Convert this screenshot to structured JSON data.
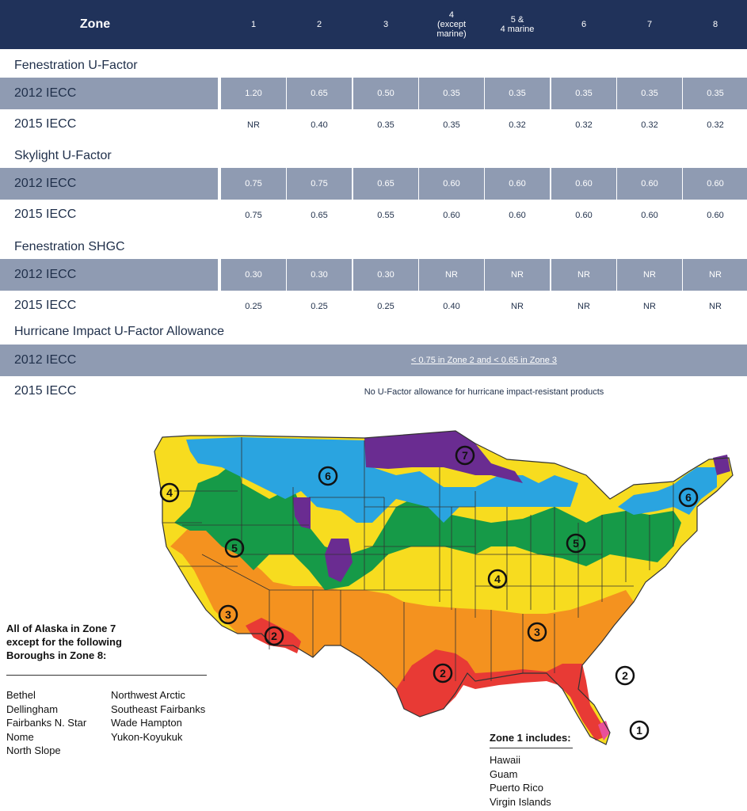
{
  "header": {
    "zone_label": "Zone",
    "columns": [
      "1",
      "2",
      "3",
      "4\n(except\nmarine)",
      "5 &\n4 marine",
      "6",
      "7",
      "8"
    ]
  },
  "sections": [
    {
      "title": "Fenestration U-Factor",
      "rows": [
        {
          "label": "2012 IECC",
          "values": [
            "1.20",
            "0.65",
            "0.50",
            "0.35",
            "0.35",
            "0.35",
            "0.35",
            "0.35"
          ]
        },
        {
          "label": "2015 IECC",
          "values": [
            "NR",
            "0.40",
            "0.35",
            "0.35",
            "0.32",
            "0.32",
            "0.32",
            "0.32"
          ]
        }
      ]
    },
    {
      "title": "Skylight U-Factor",
      "rows": [
        {
          "label": "2012 IECC",
          "values": [
            "0.75",
            "0.75",
            "0.65",
            "0.60",
            "0.60",
            "0.60",
            "0.60",
            "0.60"
          ]
        },
        {
          "label": "2015 IECC",
          "values": [
            "0.75",
            "0.65",
            "0.55",
            "0.60",
            "0.60",
            "0.60",
            "0.60",
            "0.60"
          ]
        }
      ]
    },
    {
      "title": "Fenestration SHGC",
      "rows": [
        {
          "label": "2012 IECC",
          "values": [
            "0.30",
            "0.30",
            "0.30",
            "NR",
            "NR",
            "NR",
            "NR",
            "NR"
          ]
        },
        {
          "label": "2015 IECC",
          "values": [
            "0.25",
            "0.25",
            "0.25",
            "0.40",
            "NR",
            "NR",
            "NR",
            "NR"
          ]
        }
      ]
    },
    {
      "title": "Hurricane Impact U-Factor Allowance",
      "rows": [
        {
          "label": "2012 IECC",
          "text": "< 0.75 in Zone 2 and < 0.65 in Zone 3"
        },
        {
          "label": "2015 IECC",
          "text": "No U-Factor allowance for hurricane impact-resistant products"
        }
      ]
    }
  ],
  "map": {
    "zone_markers": [
      "1",
      "2",
      "3",
      "4",
      "5",
      "6",
      "7",
      "2",
      "3",
      "4",
      "5",
      "6",
      "2"
    ],
    "colors": {
      "zone1": "#e94f9a",
      "zone2": "#e83a35",
      "zone3": "#f4921f",
      "zone4": "#f7dc1f",
      "zone5": "#169a48",
      "zone6": "#2aa4e0",
      "zone7": "#6a2c91",
      "border": "#333333"
    }
  },
  "alaska": {
    "heading_lines": [
      "All of Alaska in Zone 7",
      "except for the following",
      "Boroughs in Zone 8:"
    ],
    "col1": [
      "Bethel",
      "Dellingham",
      "Fairbanks N. Star",
      "Nome",
      "North Slope"
    ],
    "col2": [
      "Northwest Arctic",
      "Southeast Fairbanks",
      "Wade Hampton",
      "Yukon-Koyukuk"
    ]
  },
  "zone1": {
    "title": "Zone 1 includes:",
    "items": [
      "Hawaii",
      "Guam",
      "Puerto Rico",
      "Virgin Islands"
    ]
  }
}
